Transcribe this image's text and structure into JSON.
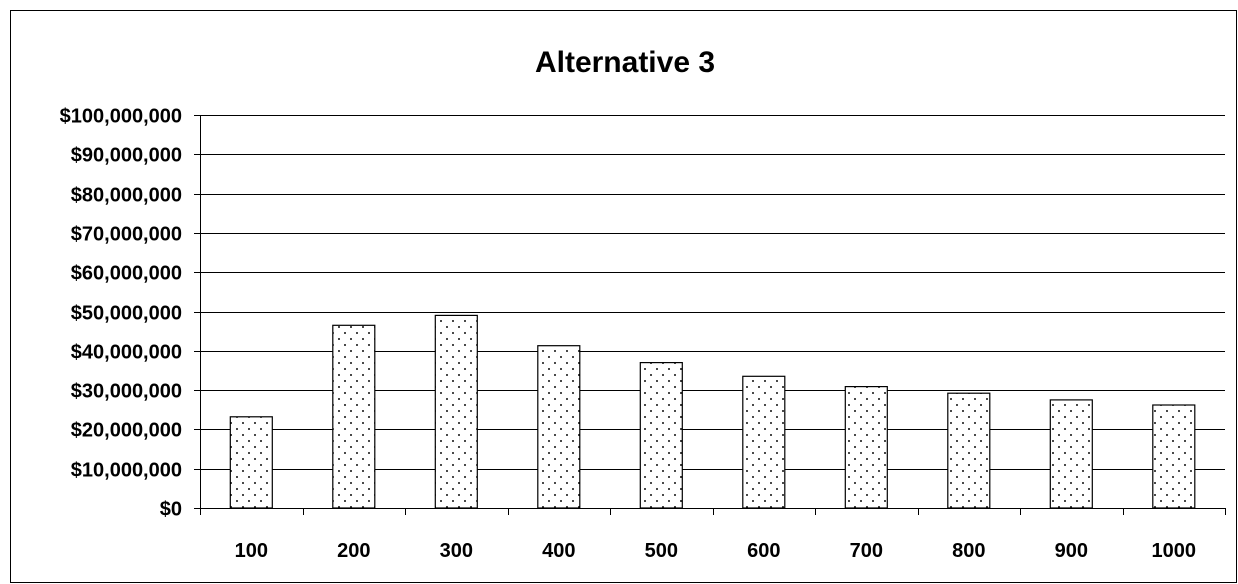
{
  "chart_data": {
    "type": "bar",
    "title": "Alternative 3",
    "xlabel": "",
    "ylabel": "",
    "categories": [
      "100",
      "200",
      "300",
      "400",
      "500",
      "600",
      "700",
      "800",
      "900",
      "1000"
    ],
    "values": [
      23200000,
      46500000,
      49000000,
      41300000,
      37000000,
      33500000,
      30900000,
      29200000,
      27500000,
      26200000
    ],
    "ylim": [
      0,
      100000000
    ],
    "yticks": [
      "$0",
      "$10,000,000",
      "$20,000,000",
      "$30,000,000",
      "$40,000,000",
      "$50,000,000",
      "$60,000,000",
      "$70,000,000",
      "$80,000,000",
      "$90,000,000",
      "$100,000,000"
    ],
    "grid": true,
    "legend": "none",
    "bar_pattern": "dotted",
    "colors": {
      "bar_fill": "#ffffff",
      "bar_dots": "#000000",
      "gridline": "#000000",
      "text": "#000000"
    }
  }
}
